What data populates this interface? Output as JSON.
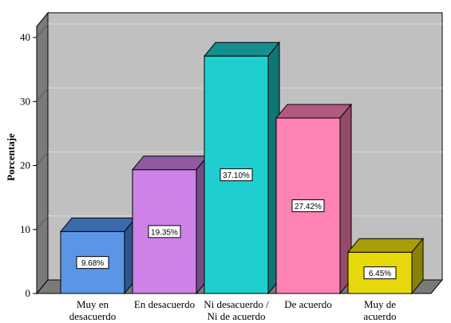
{
  "chart_data": {
    "type": "bar",
    "title": "",
    "xlabel": "",
    "ylabel": "Porcentaje",
    "ylim": [
      0,
      40
    ],
    "yticks": [
      0,
      10,
      20,
      30,
      40
    ],
    "grid": true,
    "categories": [
      [
        "Muy en",
        "desacuerdo"
      ],
      [
        "En desacuerdo"
      ],
      [
        "Ni desacuerdo /",
        "Ni de acuerdo"
      ],
      [
        "De acuerdo"
      ],
      [
        "Muy de",
        "acuerdo"
      ]
    ],
    "values": [
      9.68,
      19.35,
      37.1,
      27.42,
      6.45
    ],
    "data_labels": [
      "9.68%",
      "19.35%",
      "37.10%",
      "27.42%",
      "6.45%"
    ],
    "colors": [
      {
        "front": "#5b96e6",
        "top": "#3a6aae",
        "side": "#2e5590"
      },
      {
        "front": "#cc82e6",
        "top": "#8e5aa2",
        "side": "#764a87"
      },
      {
        "front": "#1fcfcf",
        "top": "#158e8e",
        "side": "#107575"
      },
      {
        "front": "#ff82b5",
        "top": "#b15a7e",
        "side": "#944b69"
      },
      {
        "front": "#e6d80a",
        "top": "#a89d08",
        "side": "#8a8106"
      }
    ],
    "style": {
      "back_wall": "#c0c0c0",
      "left_wall": "#7a7a7a",
      "floor": "#7a7a7a",
      "gridline": "#d9d9d9"
    }
  }
}
